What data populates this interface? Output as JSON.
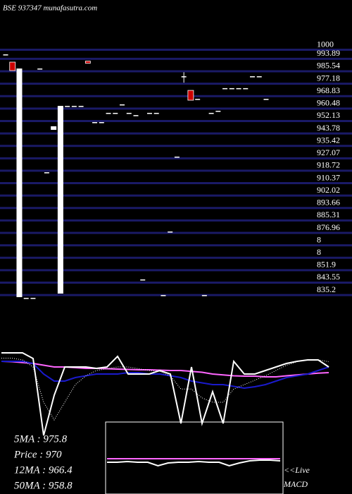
{
  "chart_data": [
    {
      "type": "candlestick",
      "title": "BSE 937347 munafasutra.com",
      "categories": [
        null,
        null,
        null,
        null,
        null,
        null,
        null,
        null,
        null,
        null,
        null,
        null,
        null,
        null,
        null,
        null,
        null,
        null,
        null,
        null,
        null,
        null,
        null,
        null,
        null,
        null,
        null,
        null,
        null,
        null,
        null,
        null,
        null,
        null,
        null,
        null,
        null,
        null,
        null
      ],
      "open": [
        995,
        989.8,
        831.9,
        831.4,
        831.4,
        985.5,
        915.8,
        944.3,
        834.3,
        960.4,
        960.4,
        960.4,
        990.5,
        949.5,
        949.5,
        955.7,
        955.7,
        961.4,
        955.7,
        954.2,
        843.8,
        955.7,
        955.7,
        833.3,
        876,
        926.3,
        980.3,
        970.8,
        965.1,
        833.3,
        955.7,
        957.1,
        972.3,
        972.3,
        972.3,
        972.3,
        980.3,
        980.3,
        965.1
      ],
      "high": [
        995,
        989.8,
        985.5,
        831.4,
        831.4,
        985.5,
        915.8,
        946.7,
        960.4,
        960.4,
        960.4,
        960.4,
        990.5,
        949.5,
        949.5,
        955.7,
        955.7,
        961.4,
        955.7,
        954.2,
        843.8,
        955.7,
        955.7,
        833.3,
        876,
        926.3,
        983,
        970.8,
        965.1,
        833.3,
        955.7,
        957.1,
        972.3,
        972.3,
        972.3,
        972.3,
        980.3,
        980.3,
        965.1
      ],
      "low": [
        995,
        984.1,
        831.9,
        831.4,
        831.4,
        985.5,
        915.8,
        944.3,
        834.3,
        960.4,
        960.4,
        960.4,
        989,
        949.5,
        949.5,
        955.7,
        955.7,
        961.4,
        955.7,
        954.2,
        843.8,
        955.7,
        955.7,
        833.3,
        876,
        926.3,
        976,
        964.2,
        965.1,
        833.3,
        955.7,
        957.1,
        972.3,
        972.3,
        972.3,
        972.3,
        980.3,
        980.3,
        965.1
      ],
      "close": [
        995,
        984.1,
        985.5,
        831.4,
        831.4,
        985.5,
        915.8,
        946.7,
        960.4,
        960.4,
        960.4,
        960.4,
        989,
        949.5,
        949.5,
        955.7,
        955.7,
        961.4,
        955.7,
        954.2,
        843.8,
        955.7,
        955.7,
        833.3,
        876,
        926.3,
        980.3,
        964.2,
        965.1,
        833.3,
        955.7,
        957.1,
        972.3,
        972.3,
        972.3,
        972.3,
        980.3,
        980.3,
        965.1
      ],
      "up_color": "#ffffff",
      "down_color": "#cc0000",
      "ylim": [
        826,
        1000
      ],
      "yticks": [
        1000,
        993.89,
        985.54,
        977.18,
        968.83,
        960.48,
        952.13,
        943.78,
        935.42,
        927.07,
        918.72,
        910.37,
        902.02,
        893.66,
        885.31,
        876.96,
        {
          "value": 868.61,
          "label": "8"
        },
        {
          "value": 860.25,
          "label": "8"
        },
        851.9,
        843.55,
        835.2
      ],
      "grid": true,
      "grid_color": "#1a1a66"
    },
    {
      "type": "line",
      "categories": [
        null,
        null,
        null,
        null,
        null,
        null,
        null,
        null,
        null,
        null,
        null,
        null,
        null,
        null,
        null,
        null,
        null,
        null,
        null,
        null,
        null,
        null,
        null,
        null,
        null,
        null,
        null,
        null,
        null,
        null,
        null,
        null
      ],
      "ylim": [
        0,
        100
      ],
      "series": [
        {
          "color": "#ff66ff",
          "values": [
            86.4,
            86,
            85,
            84,
            82,
            80,
            80,
            79.2,
            78.4,
            78.4,
            78,
            77.6,
            77.2,
            76.8,
            76.8,
            76.4,
            76,
            76,
            75,
            74,
            72,
            71,
            70,
            69.6,
            69.6,
            68.8,
            68.8,
            70,
            71,
            72,
            73,
            73.6
          ]
        },
        {
          "color": "#1a1acc",
          "values": [
            86.4,
            86.4,
            86.4,
            84,
            72,
            64,
            64,
            68,
            70,
            72,
            72,
            72,
            73.6,
            73.6,
            72,
            72,
            70,
            68,
            64,
            62,
            60,
            60,
            58,
            56,
            57.6,
            60,
            64,
            68,
            70,
            72,
            76,
            80
          ]
        },
        {
          "color": "#ffffff",
          "dash": true,
          "values": [
            90,
            90,
            88,
            80,
            40,
            20,
            40,
            60,
            70,
            76,
            78,
            80,
            80,
            78,
            76,
            75,
            70,
            55,
            55,
            45,
            40,
            40,
            55,
            60,
            65,
            70,
            76,
            82,
            86,
            88,
            88,
            86
          ]
        },
        {
          "color": "#ffffff",
          "values": [
            96,
            96,
            96,
            89.6,
            2.4,
            48,
            80,
            80,
            80,
            78.4,
            80,
            92,
            72,
            72,
            72,
            76,
            72,
            16,
            80,
            16,
            52,
            16,
            86.4,
            72,
            72,
            76,
            80,
            84,
            86.4,
            88,
            88,
            80
          ]
        }
      ]
    },
    {
      "type": "line",
      "categories": [
        null,
        null,
        null,
        null,
        null,
        null,
        null,
        null,
        null,
        null,
        null,
        null,
        null,
        null,
        null,
        null,
        null,
        null
      ],
      "ylim": [
        0,
        100
      ],
      "series": [
        {
          "color": "#ff66ff",
          "values": [
            50,
            50,
            50,
            50,
            50,
            50,
            50,
            50,
            50,
            50,
            50,
            50,
            50,
            50,
            50,
            50,
            50,
            50
          ]
        },
        {
          "color": "#ffffff",
          "values": [
            45,
            45,
            46,
            45,
            45,
            40,
            44,
            45,
            45,
            46,
            45,
            45,
            40,
            44,
            47,
            48,
            48,
            47
          ]
        }
      ]
    }
  ],
  "stats": [
    "5MA : 975.8",
    "Price  : 970",
    "12MA : 966.4",
    "50MA : 958.8"
  ],
  "macd_label": [
    "<<Live",
    "MACD"
  ]
}
